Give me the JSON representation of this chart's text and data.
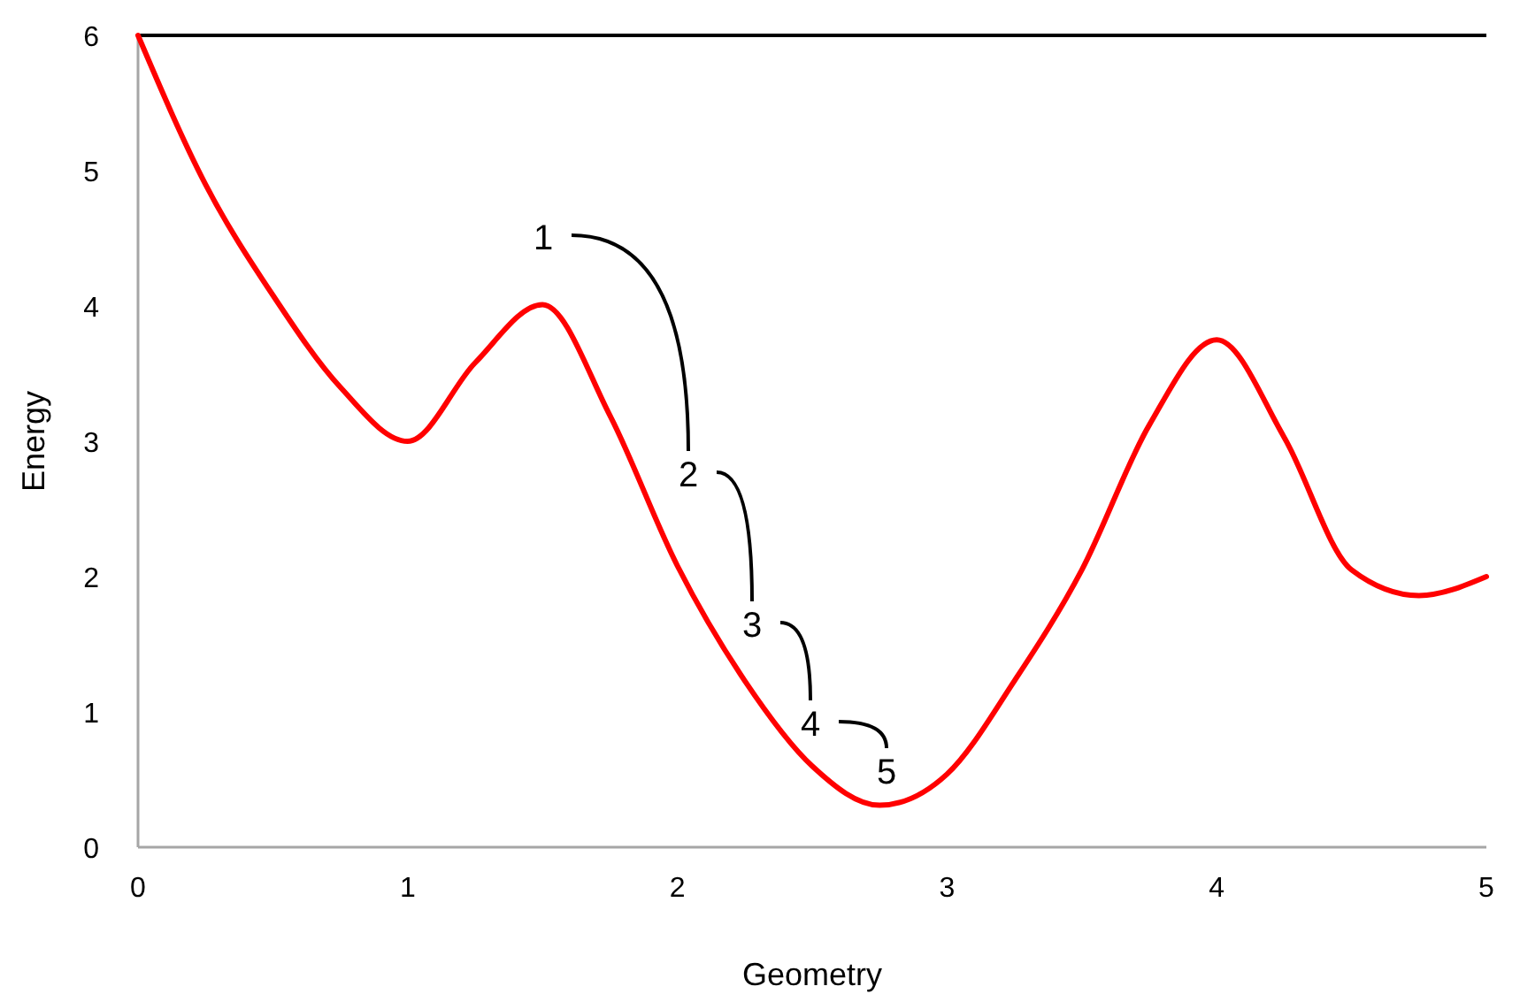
{
  "chart_data": {
    "type": "line",
    "xlabel": "Geometry",
    "ylabel": "Energy",
    "xlim": [
      0,
      5
    ],
    "ylim": [
      0,
      6
    ],
    "xticks": [
      0,
      1,
      2,
      3,
      4,
      5
    ],
    "yticks": [
      0,
      1,
      2,
      3,
      4,
      5,
      6
    ],
    "grid": false,
    "marker": "none",
    "line_style": "solid",
    "series": [
      {
        "color": "#ff0000",
        "x": [
          0,
          0.25,
          0.5,
          0.75,
          1,
          1.25,
          1.5,
          1.75,
          2,
          2.25,
          2.5,
          2.75,
          3,
          3.25,
          3.5,
          3.75,
          4,
          4.25,
          4.5,
          4.75,
          5
        ],
        "values": [
          6,
          4.9,
          4.08,
          3.4,
          3.0,
          3.58,
          4.01,
          3.19,
          2.08,
          1.23,
          0.6,
          0.31,
          0.54,
          1.23,
          2.05,
          3.12,
          3.75,
          3.03,
          2.05,
          1.86,
          2.0
        ]
      }
    ],
    "annotations": [
      "1",
      "2",
      "3",
      "4",
      "5"
    ]
  }
}
